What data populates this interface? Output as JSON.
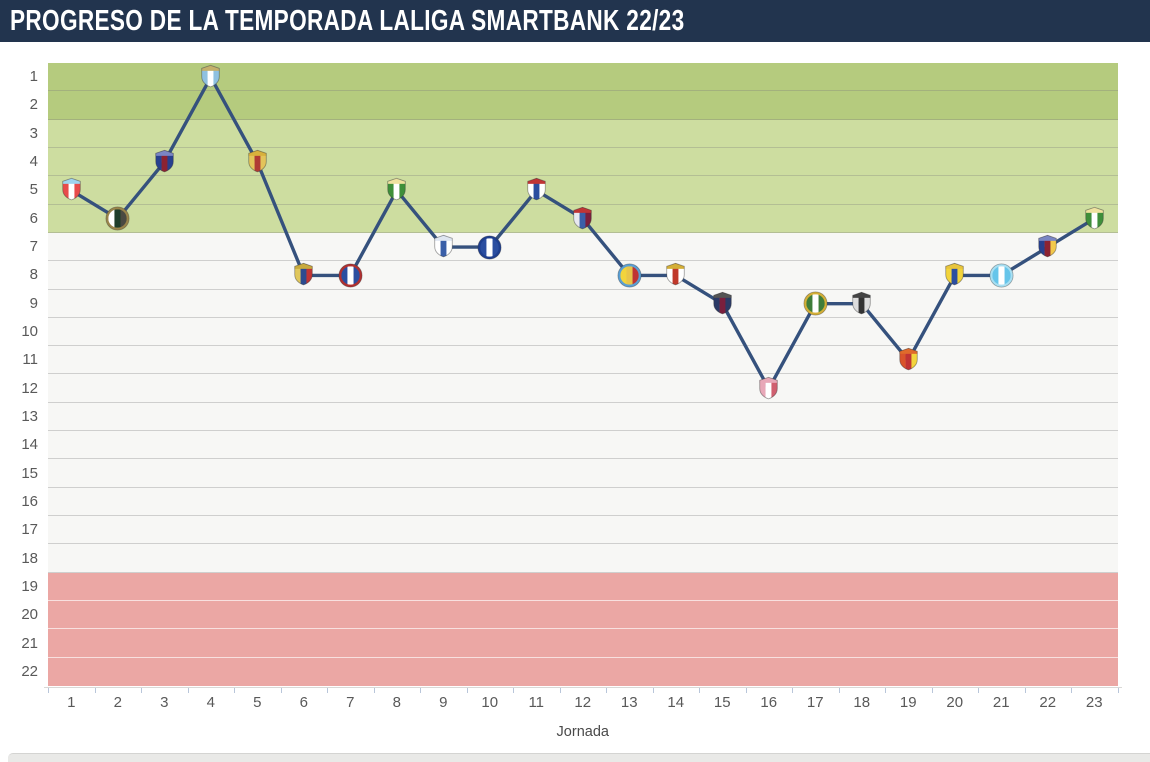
{
  "header": {
    "title": "PROGRESO DE LA TEMPORADA LALIGA SMARTBANK 22/23",
    "bar_color": "#22344e",
    "text_color": "#ffffff"
  },
  "chart_data": {
    "type": "line",
    "title": "PROGRESO DE LA TEMPORADA LALIGA SMARTBANK 22/23",
    "xlabel": "Jornada",
    "ylabel": "",
    "x": [
      1,
      2,
      3,
      4,
      5,
      6,
      7,
      8,
      9,
      10,
      11,
      12,
      13,
      14,
      15,
      16,
      17,
      18,
      19,
      20,
      21,
      22,
      23
    ],
    "positions": [
      5,
      6,
      4,
      1,
      4,
      8,
      8,
      5,
      7,
      7,
      5,
      6,
      8,
      8,
      9,
      12,
      9,
      9,
      11,
      8,
      8,
      7,
      6
    ],
    "x_ticks": [
      "1",
      "2",
      "3",
      "4",
      "5",
      "6",
      "7",
      "8",
      "9",
      "10",
      "11",
      "12",
      "13",
      "14",
      "15",
      "16",
      "17",
      "18",
      "19",
      "20",
      "21",
      "22",
      "23"
    ],
    "y_ticks": [
      "1",
      "2",
      "3",
      "4",
      "5",
      "6",
      "7",
      "8",
      "9",
      "10",
      "11",
      "12",
      "13",
      "14",
      "15",
      "16",
      "17",
      "18",
      "19",
      "20",
      "21",
      "22"
    ],
    "y_axis": {
      "min": 1,
      "max": 22,
      "inverted": true
    },
    "grid": "horizontal",
    "legend": "none",
    "line_color": "#35517d",
    "zones": [
      {
        "name": "promotion",
        "from_row": 1,
        "to_row": 2,
        "color": "#b5cb7e"
      },
      {
        "name": "promotion-playoff",
        "from_row": 3,
        "to_row": 6,
        "color": "#cddda0"
      },
      {
        "name": "mid-table",
        "from_row": 7,
        "to_row": 18,
        "color": "#f7f7f5"
      },
      {
        "name": "relegation",
        "from_row": 19,
        "to_row": 22,
        "color": "#eba7a4"
      }
    ],
    "points": [
      {
        "jornada": 1,
        "position": 5,
        "marker": {
          "shape": "shield",
          "top": "#9fd4ef",
          "stripes": [
            "#e84b4b",
            "#ffffff",
            "#e84b4b"
          ]
        }
      },
      {
        "jornada": 2,
        "position": 6,
        "marker": {
          "shape": "circle",
          "ring": "#9a854a",
          "stripes": [
            "#ffffff",
            "#1e3d2a",
            "#4a4a42"
          ]
        }
      },
      {
        "jornada": 3,
        "position": 4,
        "marker": {
          "shape": "shield",
          "top": "#7a86c4",
          "stripes": [
            "#27408f",
            "#8c2332",
            "#27408f"
          ]
        }
      },
      {
        "jornada": 4,
        "position": 1,
        "marker": {
          "shape": "shield",
          "top": "#c4b06a",
          "stripes": [
            "#8fc1e0",
            "#ffffff",
            "#8fc1e0"
          ]
        }
      },
      {
        "jornada": 5,
        "position": 4,
        "marker": {
          "shape": "shield",
          "top": "#d8b13c",
          "stripes": [
            "#e3c45a",
            "#b03a34",
            "#e3c45a"
          ]
        }
      },
      {
        "jornada": 6,
        "position": 8,
        "marker": {
          "shape": "shield",
          "top": "#c8aa3c",
          "stripes": [
            "#e0c75c",
            "#2c4b8f",
            "#c03434"
          ]
        }
      },
      {
        "jornada": 7,
        "position": 8,
        "marker": {
          "shape": "circle",
          "ring": "#b03030",
          "stripes": [
            "#2b4ea0",
            "#ffffff",
            "#2b4ea0"
          ]
        }
      },
      {
        "jornada": 8,
        "position": 5,
        "marker": {
          "shape": "shield",
          "top": "#efe2a0",
          "stripes": [
            "#3f8f3a",
            "#ffffff",
            "#3f8f3a"
          ]
        }
      },
      {
        "jornada": 9,
        "position": 7,
        "marker": {
          "shape": "shield",
          "top": "#dfe6f2",
          "stripes": [
            "#ffffff",
            "#3a5fa8",
            "#ffffff"
          ]
        }
      },
      {
        "jornada": 10,
        "position": 7,
        "marker": {
          "shape": "circle",
          "ring": "#1f3f8f",
          "stripes": [
            "#2b4ea0",
            "#ffffff",
            "#2b4ea0"
          ]
        }
      },
      {
        "jornada": 11,
        "position": 5,
        "marker": {
          "shape": "shield",
          "top": "#c03434",
          "stripes": [
            "#ffffff",
            "#2b4ea0",
            "#ffffff"
          ]
        }
      },
      {
        "jornada": 12,
        "position": 6,
        "marker": {
          "shape": "shield",
          "top": "#c03434",
          "stripes": [
            "#e8e8f0",
            "#3a5fa8",
            "#7a1f3d"
          ]
        }
      },
      {
        "jornada": 13,
        "position": 8,
        "marker": {
          "shape": "circle",
          "ring": "#5a9fd4",
          "stripes": [
            "#f2d43c",
            "#e8c54a",
            "#c03434"
          ]
        }
      },
      {
        "jornada": 14,
        "position": 8,
        "marker": {
          "shape": "shield",
          "top": "#d4af37",
          "stripes": [
            "#ffffff",
            "#c0392b",
            "#ffffff"
          ]
        }
      },
      {
        "jornada": 15,
        "position": 9,
        "marker": {
          "shape": "shield",
          "top": "#555555",
          "stripes": [
            "#2b3a66",
            "#7a1f3d",
            "#2b3a66"
          ]
        }
      },
      {
        "jornada": 16,
        "position": 12,
        "marker": {
          "shape": "shield",
          "top": "#e8a8b8",
          "stripes": [
            "#e8a8b8",
            "#ffffff",
            "#d06070"
          ]
        }
      },
      {
        "jornada": 17,
        "position": 9,
        "marker": {
          "shape": "circle",
          "ring": "#d4af37",
          "stripes": [
            "#3f7d3a",
            "#ffffff",
            "#3f7d3a"
          ]
        }
      },
      {
        "jornada": 18,
        "position": 9,
        "marker": {
          "shape": "shield",
          "top": "#444444",
          "stripes": [
            "#dddddd",
            "#333333",
            "#dddddd"
          ]
        }
      },
      {
        "jornada": 19,
        "position": 11,
        "marker": {
          "shape": "shield",
          "top": "#e06a2b",
          "stripes": [
            "#d9542b",
            "#c03434",
            "#f2d43c"
          ]
        }
      },
      {
        "jornada": 20,
        "position": 8,
        "marker": {
          "shape": "shield",
          "top": "#e8c53c",
          "stripes": [
            "#f2d43c",
            "#2b4ea0",
            "#f2d43c"
          ]
        }
      },
      {
        "jornada": 21,
        "position": 8,
        "marker": {
          "shape": "circle",
          "ring": "#a8dff2",
          "stripes": [
            "#66c5ea",
            "#ffffff",
            "#66c5ea"
          ]
        }
      },
      {
        "jornada": 22,
        "position": 7,
        "marker": {
          "shape": "shield",
          "top": "#7a86c4",
          "stripes": [
            "#27408f",
            "#8c2332",
            "#f2c94c"
          ]
        }
      },
      {
        "jornada": 23,
        "position": 6,
        "marker": {
          "shape": "shield",
          "top": "#efe2a0",
          "stripes": [
            "#3f8f3a",
            "#ffffff",
            "#3f8f3a"
          ]
        }
      }
    ]
  }
}
